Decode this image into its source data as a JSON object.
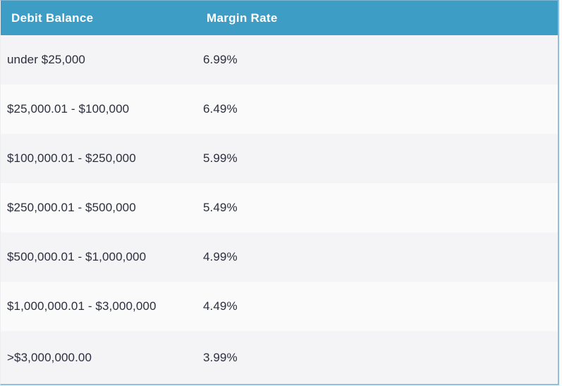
{
  "table": {
    "columns": [
      {
        "label": "Debit Balance"
      },
      {
        "label": "Margin Rate"
      }
    ],
    "rows": [
      {
        "debit_balance": "under $25,000",
        "margin_rate": "6.99%"
      },
      {
        "debit_balance": "$25,000.01 - $100,000",
        "margin_rate": "6.49%"
      },
      {
        "debit_balance": "$100,000.01 - $250,000",
        "margin_rate": "5.99%"
      },
      {
        "debit_balance": "$250,000.01 - $500,000",
        "margin_rate": "5.49%"
      },
      {
        "debit_balance": "$500,000.01 - $1,000,000",
        "margin_rate": "4.99%"
      },
      {
        "debit_balance": "$1,000,000.01 - $3,000,000",
        "margin_rate": "4.49%"
      },
      {
        "debit_balance": ">$3,000,000.00",
        "margin_rate": "3.99%"
      }
    ]
  },
  "colors": {
    "header_bg": "#3d9dc5",
    "header_text": "#ffffff",
    "row_odd_bg": "#f4f4f6",
    "row_even_bg": "#fafafa",
    "body_text": "#2b2e3e",
    "border": "#8fbfda"
  }
}
